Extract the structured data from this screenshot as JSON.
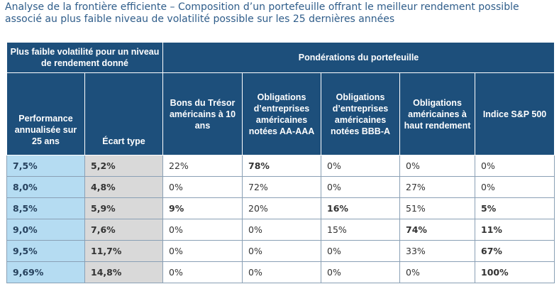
{
  "title": {
    "line1": "Analyse de la frontière efficiente – Composition d’un portefeuille offrant le meilleur rendement possible",
    "line2": "associé au plus faible niveau de volatilité possible sur les 25 dernières années"
  },
  "table": {
    "group_left": "Plus faible volatilité pour un niveau de rendement donné",
    "group_right": "Pondérations du portefeuille",
    "columns": [
      "Performance annualisée sur 25 ans",
      "Écart type",
      "Bons du Trésor américains à 10 ans",
      "Obligations d’entreprises américaines notées AA-AAA",
      "Obligations d’entreprises américaines notées BBB-A",
      "Obligations américaines à haut rendement",
      "Indice S&P 500"
    ],
    "rows": [
      [
        "7,5%",
        "5,2%",
        "22%",
        "78%",
        "0%",
        "0%",
        "0%"
      ],
      [
        "8,0%",
        "4,8%",
        "0%",
        "72%",
        "0%",
        "27%",
        "0%"
      ],
      [
        "8,5%",
        "5,9%",
        "9%",
        "20%",
        "16%",
        "51%",
        "5%"
      ],
      [
        "9,0%",
        "7,6%",
        "0%",
        "0%",
        "15%",
        "74%",
        "11%"
      ],
      [
        "9,5%",
        "11,7%",
        "0%",
        "0%",
        "0%",
        "33%",
        "67%"
      ],
      [
        "9,69%",
        "14,8%",
        "0%",
        "0%",
        "0%",
        "0%",
        "100%"
      ]
    ]
  },
  "colors": {
    "header_bg": "#1d4f7b",
    "title_text": "#2f5d8a",
    "performance_col_bg": "#b5dcf2",
    "volatility_col_bg": "#d9d9d9"
  }
}
